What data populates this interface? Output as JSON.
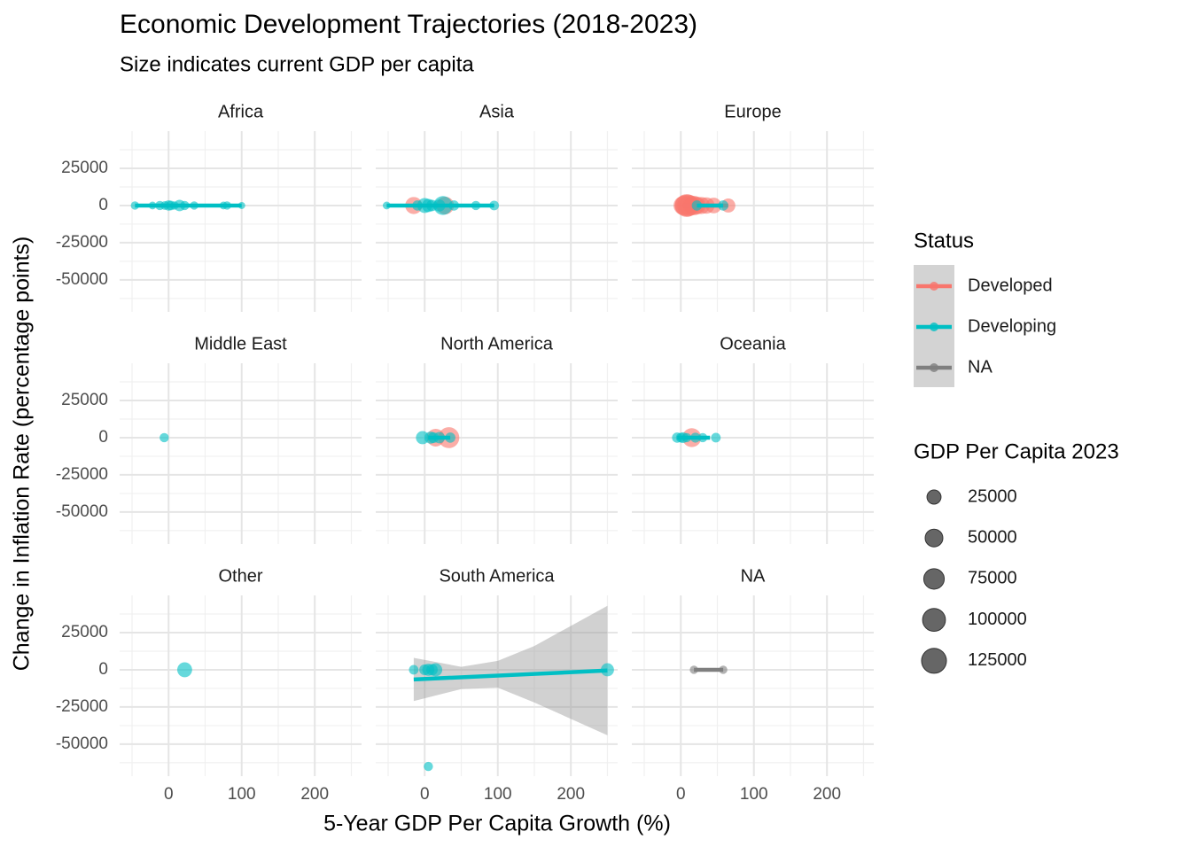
{
  "chart_data": {
    "type": "scatter",
    "title": "Economic Development Trajectories (2018-2023)",
    "subtitle": "Size indicates current GDP per capita",
    "x_label": "5-Year GDP Per Capita Growth (%)",
    "y_label": "Change in Inflation Rate (percentage points)",
    "xlim": [
      -67,
      264
    ],
    "ylim": [
      -71500,
      50000
    ],
    "xticks": [
      0,
      100,
      200
    ],
    "yticks": [
      -50000,
      -25000,
      0,
      25000
    ],
    "minor_xticks": [
      -50,
      50,
      150,
      250
    ],
    "minor_yticks": [
      -62500,
      -37500,
      -12500,
      12500,
      37500
    ],
    "grid": true,
    "status_title": "Status",
    "status": [
      {
        "name": "Developed",
        "color": "#F8766D"
      },
      {
        "name": "Developing",
        "color": "#00BFC4"
      },
      {
        "name": "NA",
        "color": "#7F7F7F"
      }
    ],
    "size_title": "GDP Per Capita 2023",
    "size_legend": [
      25000,
      50000,
      75000,
      100000,
      125000
    ],
    "panels": [
      {
        "title": "Africa",
        "series": [
          {
            "name": "Developing",
            "x": [
              -46,
              -22,
              -12,
              -5,
              0,
              3,
              8,
              15,
              22,
              35,
              75,
              80,
              100
            ],
            "y": [
              0,
              0,
              0,
              0,
              0,
              0,
              0,
              0,
              0,
              0,
              0,
              0,
              0
            ],
            "size": [
              3000,
              2000,
              5000,
              4000,
              8000,
              6000,
              3000,
              12000,
              5000,
              3000,
              2000,
              3000,
              1000
            ],
            "fit": {
              "x": [
                -46,
                100
              ],
              "y": [
                0,
                0
              ]
            }
          }
        ]
      },
      {
        "title": "Asia",
        "series": [
          {
            "name": "Developed",
            "x": [
              -15,
              28
            ],
            "y": [
              0,
              0
            ],
            "size": [
              45000,
              50000
            ]
          },
          {
            "name": "Developing",
            "x": [
              -52,
              -10,
              0,
              5,
              10,
              20,
              25,
              40,
              70,
              95
            ],
            "y": [
              0,
              0,
              0,
              0,
              0,
              0,
              0,
              0,
              0,
              0
            ],
            "size": [
              2000,
              8000,
              30000,
              20000,
              12000,
              15000,
              60000,
              8000,
              5000,
              6000
            ],
            "fit": {
              "x": [
                -52,
                95
              ],
              "y": [
                0,
                0
              ]
            }
          }
        ]
      },
      {
        "title": "Europe",
        "series": [
          {
            "name": "Developed",
            "x": [
              3,
              6,
              8,
              10,
              12,
              15,
              18,
              22,
              28,
              35,
              45,
              65
            ],
            "y": [
              0,
              0,
              0,
              0,
              0,
              0,
              0,
              0,
              0,
              0,
              0,
              0
            ],
            "size": [
              60000,
              80000,
              100000,
              90000,
              70000,
              55000,
              65000,
              50000,
              45000,
              40000,
              35000,
              25000
            ],
            "fit": {
              "x": [
                3,
                65
              ],
              "y": [
                0,
                0
              ]
            }
          },
          {
            "name": "Developing",
            "x": [
              22,
              58
            ],
            "y": [
              0,
              0
            ],
            "size": [
              8000,
              8000
            ],
            "fit": {
              "x": [
                22,
                58
              ],
              "y": [
                0,
                0
              ]
            }
          }
        ]
      },
      {
        "title": "Middle East",
        "series": [
          {
            "name": "Developing",
            "x": [
              -6
            ],
            "y": [
              0
            ],
            "size": [
              5000
            ]
          }
        ]
      },
      {
        "title": "North America",
        "series": [
          {
            "name": "Developed",
            "x": [
              15,
              33
            ],
            "y": [
              0,
              0
            ],
            "size": [
              50000,
              80000
            ]
          },
          {
            "name": "Developing",
            "x": [
              -3,
              8,
              12,
              20,
              35
            ],
            "y": [
              0,
              0,
              0,
              0,
              0
            ],
            "size": [
              20000,
              15000,
              10000,
              12000,
              8000
            ],
            "fit": {
              "x": [
                5,
                35
              ],
              "y": [
                0,
                0
              ]
            }
          }
        ]
      },
      {
        "title": "Oceania",
        "series": [
          {
            "name": "Developed",
            "x": [
              15
            ],
            "y": [
              0
            ],
            "size": [
              60000
            ]
          },
          {
            "name": "Developing",
            "x": [
              -5,
              0,
              3,
              8,
              20,
              30,
              48
            ],
            "y": [
              0,
              0,
              0,
              0,
              0,
              0,
              0
            ],
            "size": [
              8000,
              6000,
              10000,
              5000,
              7000,
              5000,
              6000
            ],
            "fit": {
              "x": [
                -5,
                40
              ],
              "y": [
                0,
                0
              ]
            }
          }
        ]
      },
      {
        "title": "Other",
        "series": [
          {
            "name": "Developing",
            "x": [
              22
            ],
            "y": [
              0
            ],
            "size": [
              30000
            ]
          }
        ]
      },
      {
        "title": "South America",
        "series": [
          {
            "name": "Developing",
            "x": [
              -15,
              0,
              5,
              10,
              15,
              250,
              5
            ],
            "y": [
              0,
              0,
              0,
              0,
              0,
              0,
              -65000
            ],
            "size": [
              6000,
              10000,
              15000,
              12000,
              20000,
              20000,
              5000
            ],
            "fit": {
              "x": [
                -15,
                250
              ],
              "y": [
                -6500,
                -500
              ]
            },
            "band": {
              "x": [
                -15,
                50,
                100,
                150,
                250
              ],
              "lower": [
                -21000,
                -13000,
                -12000,
                -22000,
                -44000
              ],
              "upper": [
                8000,
                2000,
                6000,
                16000,
                43000
              ]
            }
          }
        ]
      },
      {
        "title": "NA",
        "series": [
          {
            "name": "NA",
            "x": [
              18,
              58
            ],
            "y": [
              0,
              0
            ],
            "size": [
              3000,
              3000
            ],
            "fit": {
              "x": [
                18,
                58
              ],
              "y": [
                0,
                0
              ]
            }
          }
        ]
      }
    ]
  }
}
